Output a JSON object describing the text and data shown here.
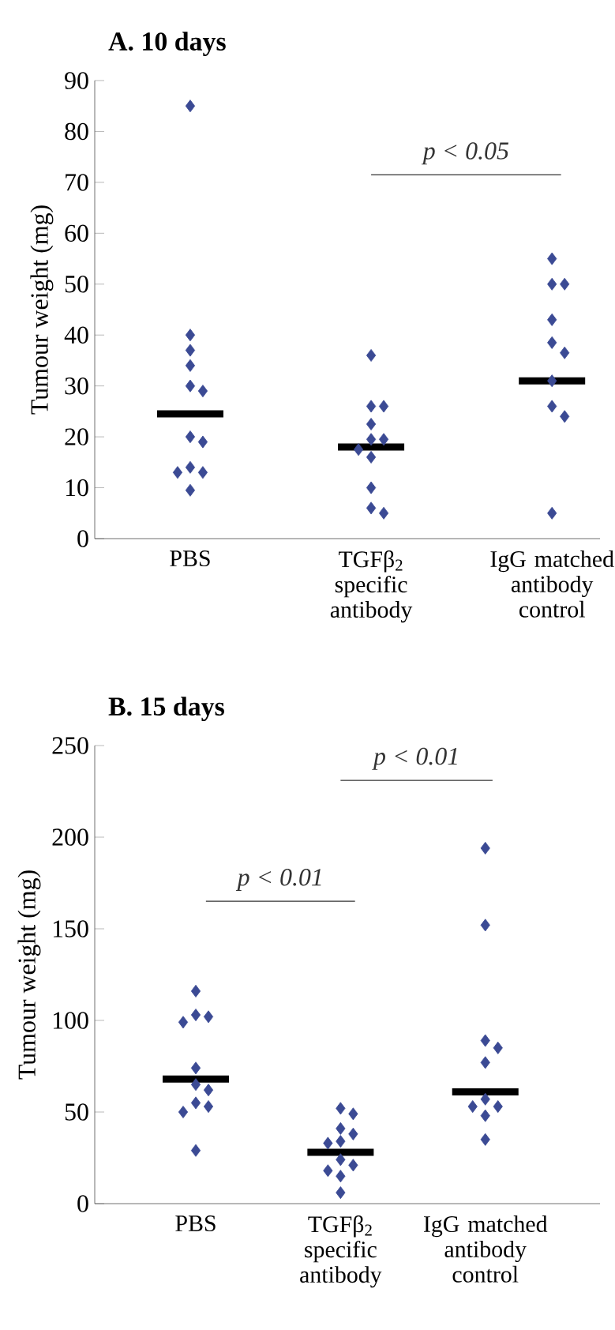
{
  "chart_data": [
    {
      "type": "scatter",
      "title": "A. 10 days",
      "ylabel": "Tumour weight (mg)",
      "categories": [
        "PBS",
        "TGFβ$_{2}$ specific antibody",
        "IgG matched antibody control"
      ],
      "ylim": [
        0,
        90
      ],
      "yticks": [
        0,
        10,
        20,
        30,
        40,
        50,
        60,
        70,
        80,
        90
      ],
      "marker": "diamond",
      "series": [
        {
          "color": "#3b4a94",
          "x": [
            "PBS",
            "PBS",
            "PBS",
            "PBS",
            "PBS",
            "PBS",
            "PBS",
            "PBS",
            "PBS",
            "PBS",
            "PBS",
            "PBS",
            "TGFβ$_{2}$ specific antibody",
            "TGFβ$_{2}$ specific antibody",
            "TGFβ$_{2}$ specific antibody",
            "TGFβ$_{2}$ specific antibody",
            "TGFβ$_{2}$ specific antibody",
            "TGFβ$_{2}$ specific antibody",
            "TGFβ$_{2}$ specific antibody",
            "TGFβ$_{2}$ specific antibody",
            "TGFβ$_{2}$ specific antibody",
            "TGFβ$_{2}$ specific antibody",
            "TGFβ$_{2}$ specific antibody",
            "IgG matched antibody control",
            "IgG matched antibody control",
            "IgG matched antibody control",
            "IgG matched antibody control",
            "IgG matched antibody control",
            "IgG matched antibody control",
            "IgG matched antibody control",
            "IgG matched antibody control",
            "IgG matched antibody control",
            "IgG matched antibody control"
          ],
          "values": [
            85,
            40,
            37,
            34,
            30,
            29,
            20,
            19,
            14,
            13,
            13,
            9.5,
            36,
            26,
            26,
            22.5,
            19.5,
            19.5,
            17.5,
            16,
            10,
            6,
            5,
            55,
            50,
            50,
            43,
            38.5,
            36.5,
            31,
            26,
            24,
            5
          ]
        }
      ],
      "ref_lines": [
        {
          "axis": "y",
          "value": 24.5,
          "color": "#000000"
        },
        {
          "axis": "y",
          "value": 18,
          "color": "#000000"
        },
        {
          "axis": "y",
          "value": 31,
          "color": "#000000"
        }
      ],
      "annotations": [
        "p < 0.05"
      ]
    },
    {
      "type": "scatter",
      "title": "B. 15 days",
      "ylabel": "Tumour weight (mg)",
      "categories": [
        "PBS",
        "TGFβ$_{2}$ specific antibody",
        "IgG matched antibody control"
      ],
      "ylim": [
        0,
        250
      ],
      "yticks": [
        0,
        50,
        100,
        150,
        200,
        250
      ],
      "marker": "diamond",
      "series": [
        {
          "color": "#3b4a94",
          "x": [
            "PBS",
            "PBS",
            "PBS",
            "PBS",
            "PBS",
            "PBS",
            "PBS",
            "PBS",
            "PBS",
            "PBS",
            "PBS",
            "TGFβ$_{2}$ specific antibody",
            "TGFβ$_{2}$ specific antibody",
            "TGFβ$_{2}$ specific antibody",
            "TGFβ$_{2}$ specific antibody",
            "TGFβ$_{2}$ specific antibody",
            "TGFβ$_{2}$ specific antibody",
            "TGFβ$_{2}$ specific antibody",
            "TGFβ$_{2}$ specific antibody",
            "TGFβ$_{2}$ specific antibody",
            "TGFβ$_{2}$ specific antibody",
            "TGFβ$_{2}$ specific antibody",
            "IgG matched antibody control",
            "IgG matched antibody control",
            "IgG matched antibody control",
            "IgG matched antibody control",
            "IgG matched antibody control",
            "IgG matched antibody control",
            "IgG matched antibody control",
            "IgG matched antibody control",
            "IgG matched antibody control",
            "IgG matched antibody control"
          ],
          "values": [
            116,
            103,
            102,
            99,
            74,
            65,
            62,
            55,
            53,
            50,
            29,
            52,
            49,
            41,
            38,
            34,
            33,
            24,
            21,
            18,
            15,
            6,
            194,
            152,
            89,
            85,
            77,
            57,
            53,
            53,
            48,
            35
          ]
        }
      ],
      "ref_lines": [
        {
          "axis": "y",
          "value": 68,
          "color": "#000000"
        },
        {
          "axis": "y",
          "value": 28,
          "color": "#000000"
        },
        {
          "axis": "y",
          "value": 61,
          "color": "#000000"
        }
      ],
      "annotations": [
        "p < 0.01",
        "p < 0.01"
      ]
    }
  ]
}
